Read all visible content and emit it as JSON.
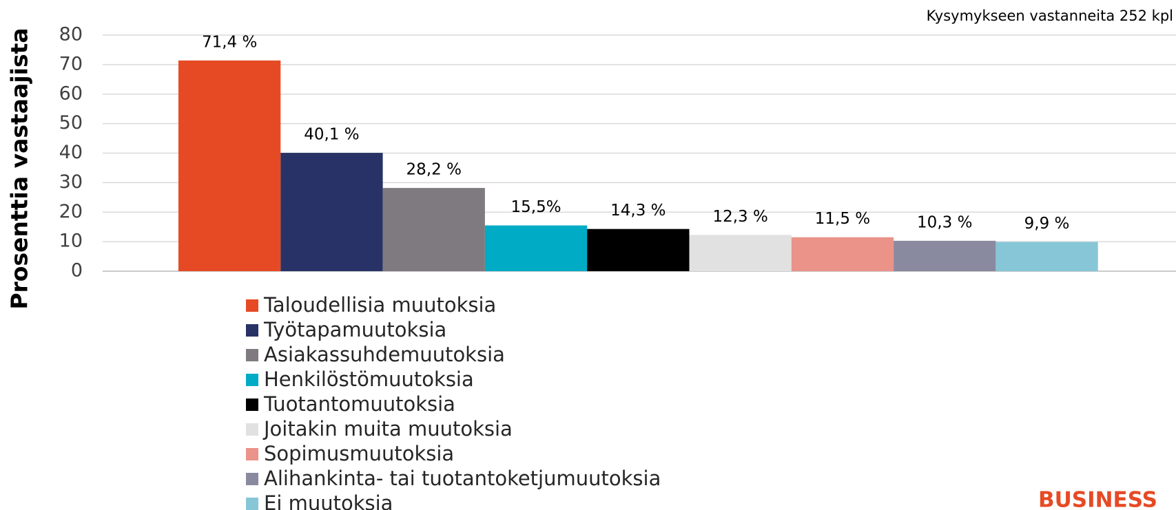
{
  "chart_data": {
    "type": "bar",
    "subtitle": "Kysymykseen vastanneita 252 kpl",
    "y_label": "Prosenttia vastaajista",
    "annotation": "BUSINESS",
    "series": [
      {
        "name": "Taloudellisia muutoksia",
        "color": "#e64a25",
        "values": [
          71.4
        ],
        "value_labels": [
          "71,4 %"
        ]
      },
      {
        "name": "Työtapamuutoksia",
        "color": "#283266",
        "values": [
          40.1
        ],
        "value_labels": [
          "40,1 %"
        ]
      },
      {
        "name": "Asiakassuhdemuutoksia",
        "color": "#7f7a80",
        "values": [
          28.2
        ],
        "value_labels": [
          "28,2 %"
        ]
      },
      {
        "name": "Henkilöstömuutoksia",
        "color": "#00abc5",
        "values": [
          15.5
        ],
        "value_labels": [
          "15,5%"
        ]
      },
      {
        "name": "Tuotantomuutoksia",
        "color": "#000000",
        "values": [
          14.3
        ],
        "value_labels": [
          "14,3 %"
        ]
      },
      {
        "name": "Joitakin muita muutoksia",
        "color": "#e1e1e1",
        "values": [
          12.3
        ],
        "value_labels": [
          "12,3 %"
        ]
      },
      {
        "name": "Sopimusmuutoksia",
        "color": "#eb9289",
        "values": [
          11.5
        ],
        "value_labels": [
          "11,5 %"
        ]
      },
      {
        "name": "Alihankinta- tai tuotantoketjumuutoksia",
        "color": "#898aa0",
        "values": [
          10.3
        ],
        "value_labels": [
          "10,3 %"
        ]
      },
      {
        "name": "Ei muutoksia",
        "color": "#86c6d7",
        "values": [
          9.9
        ],
        "value_labels": [
          "9,9 %"
        ]
      }
    ],
    "ylim": [
      0,
      80
    ],
    "yticks": [
      0,
      10,
      20,
      30,
      40,
      50,
      60,
      70,
      80
    ],
    "grid": true
  }
}
